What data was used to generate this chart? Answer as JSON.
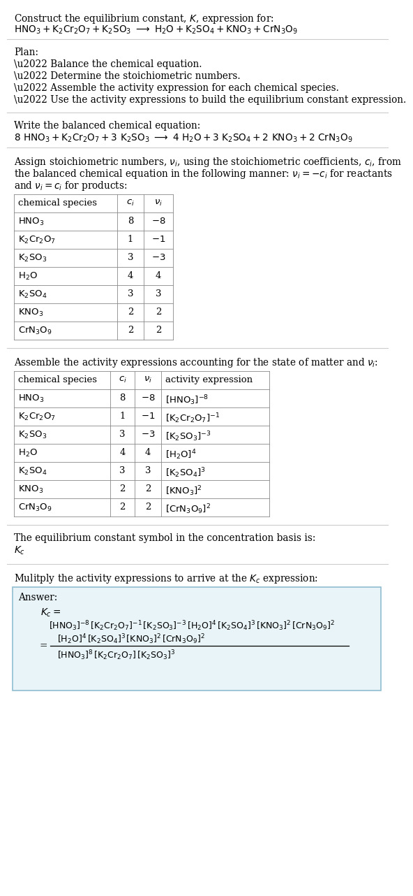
{
  "bg_color": "#ffffff",
  "text_color": "#000000",
  "title_text": "Construct the equilibrium constant, $K$, expression for:",
  "reaction_unbalanced": "$\\mathrm{HNO_3 + K_2Cr_2O_7 + K_2SO_3\\ \\longrightarrow\\ H_2O + K_2SO_4 + KNO_3 + CrN_3O_9}$",
  "plan_header": "Plan:",
  "plan_items": [
    "\\u2022 Balance the chemical equation.",
    "\\u2022 Determine the stoichiometric numbers.",
    "\\u2022 Assemble the activity expression for each chemical species.",
    "\\u2022 Use the activity expressions to build the equilibrium constant expression."
  ],
  "balanced_header": "Write the balanced chemical equation:",
  "reaction_balanced": "$\\mathrm{8\\ HNO_3 + K_2Cr_2O_7 + 3\\ K_2SO_3\\ \\longrightarrow\\ 4\\ H_2O + 3\\ K_2SO_4 + 2\\ KNO_3 + 2\\ CrN_3O_9}$",
  "assign_line1": "Assign stoichiometric numbers, $\\nu_i$, using the stoichiometric coefficients, $c_i$, from",
  "assign_line2": "the balanced chemical equation in the following manner: $\\nu_i = -c_i$ for reactants",
  "assign_line3": "and $\\nu_i = c_i$ for products:",
  "table1_col_headers": [
    "chemical species",
    "$c_i$",
    "$\\nu_i$"
  ],
  "table1_rows": [
    [
      "$\\mathrm{HNO_3}$",
      "8",
      "$-8$"
    ],
    [
      "$\\mathrm{K_2Cr_2O_7}$",
      "1",
      "$-1$"
    ],
    [
      "$\\mathrm{K_2SO_3}$",
      "3",
      "$-3$"
    ],
    [
      "$\\mathrm{H_2O}$",
      "4",
      "4"
    ],
    [
      "$\\mathrm{K_2SO_4}$",
      "3",
      "3"
    ],
    [
      "$\\mathrm{KNO_3}$",
      "2",
      "2"
    ],
    [
      "$\\mathrm{CrN_3O_9}$",
      "2",
      "2"
    ]
  ],
  "assemble_header": "Assemble the activity expressions accounting for the state of matter and $\\nu_i$:",
  "table2_col_headers": [
    "chemical species",
    "$c_i$",
    "$\\nu_i$",
    "activity expression"
  ],
  "table2_rows": [
    [
      "$\\mathrm{HNO_3}$",
      "8",
      "$-8$",
      "$[\\mathrm{HNO_3}]^{-8}$"
    ],
    [
      "$\\mathrm{K_2Cr_2O_7}$",
      "1",
      "$-1$",
      "$[\\mathrm{K_2Cr_2O_7}]^{-1}$"
    ],
    [
      "$\\mathrm{K_2SO_3}$",
      "3",
      "$-3$",
      "$[\\mathrm{K_2SO_3}]^{-3}$"
    ],
    [
      "$\\mathrm{H_2O}$",
      "4",
      "4",
      "$[\\mathrm{H_2O}]^{4}$"
    ],
    [
      "$\\mathrm{K_2SO_4}$",
      "3",
      "3",
      "$[\\mathrm{K_2SO_4}]^{3}$"
    ],
    [
      "$\\mathrm{KNO_3}$",
      "2",
      "2",
      "$[\\mathrm{KNO_3}]^{2}$"
    ],
    [
      "$\\mathrm{CrN_3O_9}$",
      "2",
      "2",
      "$[\\mathrm{CrN_3O_9}]^{2}$"
    ]
  ],
  "kc_header": "The equilibrium constant symbol in the concentration basis is:",
  "kc_symbol": "$K_c$",
  "multiply_header": "Mulitply the activity expressions to arrive at the $K_c$ expression:",
  "answer_label": "Answer:",
  "answer_box_color": "#e8f4f8",
  "answer_box_border": "#90bdd0",
  "kc_line0": "$K_c =$",
  "kc_line1": "$[\\mathrm{HNO_3}]^{-8}\\,[\\mathrm{K_2Cr_2O_7}]^{-1}\\,[\\mathrm{K_2SO_3}]^{-3}\\,[\\mathrm{H_2O}]^{4}\\,[\\mathrm{K_2SO_4}]^{3}\\,[\\mathrm{KNO_3}]^{2}\\,[\\mathrm{CrN_3O_9}]^{2}$",
  "kc_num": "$[\\mathrm{H_2O}]^{4}\\,[\\mathrm{K_2SO_4}]^{3}\\,[\\mathrm{KNO_3}]^{2}\\,[\\mathrm{CrN_3O_9}]^{2}$",
  "kc_den": "$[\\mathrm{HNO_3}]^{8}\\,[\\mathrm{K_2Cr_2O_7}]\\,[\\mathrm{K_2SO_3}]^{3}$",
  "divider_color": "#cccccc",
  "table_line_color": "#888888"
}
